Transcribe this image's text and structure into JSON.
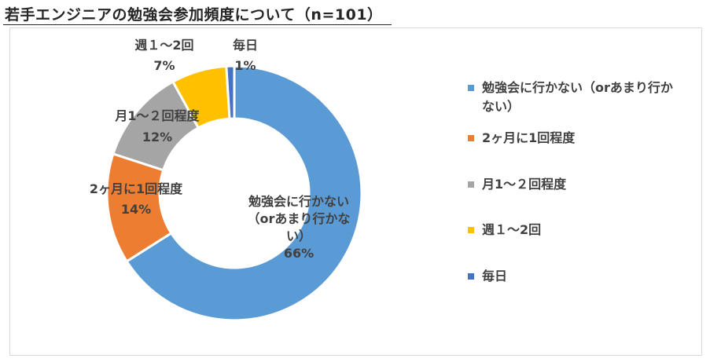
{
  "title": "若手エンジニアの勉強会参加頻度について（n=101）",
  "chart_data": {
    "type": "pie",
    "style": "donut",
    "series": [
      {
        "name": "勉強会に行かない（orあまり行かない）",
        "value": 66,
        "color": "#5b9bd5",
        "label_lines": [
          "勉強会に行かない",
          "（orあまり行かな",
          "い）"
        ],
        "percent": "66%"
      },
      {
        "name": "2ヶ月に1回程度",
        "value": 14,
        "color": "#ed7d31",
        "label_lines": [
          "2ヶ月に1回程度"
        ],
        "percent": "14%"
      },
      {
        "name": "月1～２回程度",
        "value": 12,
        "color": "#a5a5a5",
        "label_lines": [
          "月1～２回程度"
        ],
        "percent": "12%"
      },
      {
        "name": "週１～2回",
        "value": 7,
        "color": "#ffc000",
        "label_lines": [
          "週１～2回"
        ],
        "percent": "7%"
      },
      {
        "name": "毎日",
        "value": 1,
        "color": "#4472c4",
        "label_lines": [
          "毎日"
        ],
        "percent": "1%"
      }
    ],
    "legend": {
      "placement": "right",
      "items": [
        {
          "lines": [
            "勉強会に行かない（orあまり行か",
            "ない）"
          ],
          "color": "#5b9bd5"
        },
        {
          "lines": [
            "2ヶ月に1回程度"
          ],
          "color": "#ed7d31"
        },
        {
          "lines": [
            "月1～２回程度"
          ],
          "color": "#a5a5a5"
        },
        {
          "lines": [
            "週１～2回"
          ],
          "color": "#ffc000"
        },
        {
          "lines": [
            "毎日"
          ],
          "color": "#4472c4"
        }
      ]
    }
  }
}
